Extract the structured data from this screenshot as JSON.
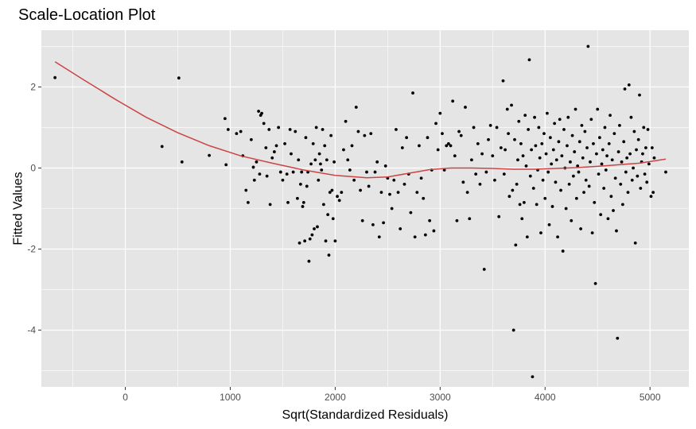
{
  "chart_data": {
    "type": "scatter",
    "title": "Scale-Location Plot",
    "xlabel": "Sqrt(Standardized Residuals)",
    "ylabel": "Fitted Values",
    "xlim": [
      -800,
      5370
    ],
    "ylim": [
      -5.4,
      3.4
    ],
    "x_ticks": [
      0,
      1000,
      2000,
      3000,
      4000,
      5000
    ],
    "x_tick_labels": [
      "0",
      "1000",
      "2000",
      "3000",
      "4000",
      "5000"
    ],
    "y_ticks": [
      -4,
      -2,
      0,
      2
    ],
    "y_tick_labels": [
      "-4",
      "-2",
      "0",
      "2"
    ],
    "grid": true,
    "background": "#e5e5e5",
    "grid_color": "#ffffff",
    "point_color": "#000000",
    "smooth_color": "#cc4444",
    "points": [
      [
        -670,
        2.23
      ],
      [
        350,
        0.53
      ],
      [
        510,
        2.22
      ],
      [
        540,
        0.15
      ],
      [
        800,
        0.31
      ],
      [
        950,
        1.22
      ],
      [
        960,
        0.08
      ],
      [
        980,
        0.95
      ],
      [
        1060,
        0.85
      ],
      [
        1100,
        0.9
      ],
      [
        1120,
        0.3
      ],
      [
        1150,
        -0.55
      ],
      [
        1170,
        -0.85
      ],
      [
        1200,
        0.7
      ],
      [
        1220,
        0.02
      ],
      [
        1230,
        -0.3
      ],
      [
        1250,
        0.15
      ],
      [
        1270,
        1.4
      ],
      [
        1280,
        -0.15
      ],
      [
        1290,
        1.3
      ],
      [
        1300,
        1.35
      ],
      [
        1320,
        1.1
      ],
      [
        1340,
        0.5
      ],
      [
        1350,
        -0.2
      ],
      [
        1370,
        0.95
      ],
      [
        1380,
        -0.9
      ],
      [
        1400,
        0.25
      ],
      [
        1420,
        0.4
      ],
      [
        1440,
        0.55
      ],
      [
        1460,
        1.0
      ],
      [
        1480,
        -0.1
      ],
      [
        1500,
        -0.3
      ],
      [
        1520,
        0.6
      ],
      [
        1540,
        -0.15
      ],
      [
        1550,
        -0.85
      ],
      [
        1570,
        0.95
      ],
      [
        1580,
        0.35
      ],
      [
        1600,
        -0.1
      ],
      [
        1620,
        0.9
      ],
      [
        1640,
        -0.75
      ],
      [
        1650,
        0.2
      ],
      [
        1660,
        -1.85
      ],
      [
        1670,
        -0.4
      ],
      [
        1680,
        -0.1
      ],
      [
        1690,
        -0.95
      ],
      [
        1700,
        -0.85
      ],
      [
        1710,
        -1.8
      ],
      [
        1720,
        0.75
      ],
      [
        1730,
        -0.45
      ],
      [
        1740,
        -0.1
      ],
      [
        1750,
        -2.3
      ],
      [
        1760,
        -1.75
      ],
      [
        1770,
        0.1
      ],
      [
        1780,
        -1.65
      ],
      [
        1790,
        0.6
      ],
      [
        1800,
        -1.5
      ],
      [
        1810,
        0.2
      ],
      [
        1820,
        1.0
      ],
      [
        1830,
        -1.45
      ],
      [
        1840,
        -0.3
      ],
      [
        1850,
        0.35
      ],
      [
        1860,
        0.1
      ],
      [
        1870,
        -0.05
      ],
      [
        1880,
        0.95
      ],
      [
        1890,
        -0.9
      ],
      [
        1900,
        0.55
      ],
      [
        1910,
        -1.8
      ],
      [
        1920,
        0.2
      ],
      [
        1930,
        -1.15
      ],
      [
        1940,
        -2.15
      ],
      [
        1950,
        -0.6
      ],
      [
        1960,
        0.8
      ],
      [
        1970,
        -0.55
      ],
      [
        1980,
        -1.25
      ],
      [
        1990,
        0.15
      ],
      [
        2000,
        -1.8
      ],
      [
        2020,
        -0.7
      ],
      [
        2040,
        -0.8
      ],
      [
        2060,
        -0.6
      ],
      [
        2080,
        0.45
      ],
      [
        2100,
        1.15
      ],
      [
        2120,
        0.2
      ],
      [
        2140,
        -0.05
      ],
      [
        2160,
        0.55
      ],
      [
        2180,
        -0.3
      ],
      [
        2200,
        1.5
      ],
      [
        2220,
        0.9
      ],
      [
        2240,
        -0.55
      ],
      [
        2260,
        -1.3
      ],
      [
        2280,
        0.8
      ],
      [
        2300,
        -0.1
      ],
      [
        2320,
        -0.45
      ],
      [
        2340,
        0.85
      ],
      [
        2360,
        -1.4
      ],
      [
        2380,
        -0.1
      ],
      [
        2400,
        0.15
      ],
      [
        2420,
        -1.7
      ],
      [
        2440,
        -0.6
      ],
      [
        2460,
        -1.35
      ],
      [
        2480,
        0.05
      ],
      [
        2500,
        -0.25
      ],
      [
        2520,
        -0.65
      ],
      [
        2540,
        -1.0
      ],
      [
        2560,
        -0.3
      ],
      [
        2580,
        0.95
      ],
      [
        2600,
        -0.6
      ],
      [
        2620,
        -1.5
      ],
      [
        2640,
        0.5
      ],
      [
        2660,
        -0.4
      ],
      [
        2680,
        0.75
      ],
      [
        2700,
        -0.15
      ],
      [
        2720,
        -1.1
      ],
      [
        2740,
        1.85
      ],
      [
        2760,
        -1.7
      ],
      [
        2780,
        -0.6
      ],
      [
        2800,
        0.55
      ],
      [
        2820,
        -0.25
      ],
      [
        2840,
        -0.75
      ],
      [
        2860,
        -1.65
      ],
      [
        2880,
        0.75
      ],
      [
        2900,
        -1.3
      ],
      [
        2920,
        -0.05
      ],
      [
        2940,
        -1.55
      ],
      [
        2960,
        1.1
      ],
      [
        2980,
        0.45
      ],
      [
        3000,
        1.35
      ],
      [
        3020,
        0.85
      ],
      [
        3040,
        -0.05
      ],
      [
        3060,
        0.55
      ],
      [
        3080,
        0.6
      ],
      [
        3100,
        0.55
      ],
      [
        3120,
        1.65
      ],
      [
        3140,
        0.3
      ],
      [
        3160,
        -1.3
      ],
      [
        3180,
        0.9
      ],
      [
        3200,
        0.8
      ],
      [
        3220,
        -0.35
      ],
      [
        3240,
        1.5
      ],
      [
        3260,
        -0.6
      ],
      [
        3280,
        -1.25
      ],
      [
        3300,
        0.2
      ],
      [
        3320,
        1.0
      ],
      [
        3340,
        -0.15
      ],
      [
        3360,
        0.6
      ],
      [
        3380,
        -0.4
      ],
      [
        3400,
        0.35
      ],
      [
        3420,
        -2.5
      ],
      [
        3440,
        -0.1
      ],
      [
        3460,
        0.7
      ],
      [
        3480,
        1.05
      ],
      [
        3500,
        0.3
      ],
      [
        3520,
        -0.3
      ],
      [
        3540,
        1.0
      ],
      [
        3560,
        -1.2
      ],
      [
        3580,
        0.5
      ],
      [
        3600,
        2.15
      ],
      [
        3610,
        -0.15
      ],
      [
        3620,
        0.45
      ],
      [
        3640,
        1.45
      ],
      [
        3650,
        0.85
      ],
      [
        3660,
        -0.7
      ],
      [
        3680,
        1.55
      ],
      [
        3690,
        -0.55
      ],
      [
        3700,
        -4.0
      ],
      [
        3710,
        0.7
      ],
      [
        3720,
        -1.9
      ],
      [
        3730,
        -0.4
      ],
      [
        3740,
        0.2
      ],
      [
        3750,
        1.15
      ],
      [
        3760,
        -0.9
      ],
      [
        3770,
        0.6
      ],
      [
        3780,
        -1.25
      ],
      [
        3790,
        0.3
      ],
      [
        3800,
        -0.85
      ],
      [
        3810,
        1.3
      ],
      [
        3820,
        0.05
      ],
      [
        3830,
        -1.7
      ],
      [
        3840,
        0.95
      ],
      [
        3850,
        2.67
      ],
      [
        3860,
        -0.2
      ],
      [
        3870,
        0.45
      ],
      [
        3880,
        -5.15
      ],
      [
        3890,
        -0.5
      ],
      [
        3900,
        1.25
      ],
      [
        3910,
        0.55
      ],
      [
        3920,
        -0.9
      ],
      [
        3930,
        -0.05
      ],
      [
        3940,
        1.0
      ],
      [
        3950,
        0.25
      ],
      [
        3960,
        -1.6
      ],
      [
        3970,
        0.6
      ],
      [
        3980,
        -0.3
      ],
      [
        3990,
        0.85
      ],
      [
        4000,
        -0.75
      ],
      [
        4010,
        0.35
      ],
      [
        4020,
        1.35
      ],
      [
        4030,
        -0.1
      ],
      [
        4040,
        -1.4
      ],
      [
        4050,
        0.75
      ],
      [
        4060,
        0.1
      ],
      [
        4070,
        -0.95
      ],
      [
        4080,
        0.45
      ],
      [
        4090,
        1.1
      ],
      [
        4100,
        -0.35
      ],
      [
        4110,
        0.2
      ],
      [
        4120,
        -1.7
      ],
      [
        4130,
        0.65
      ],
      [
        4140,
        1.2
      ],
      [
        4150,
        -0.55
      ],
      [
        4160,
        0.3
      ],
      [
        4170,
        -2.05
      ],
      [
        4180,
        0.95
      ],
      [
        4190,
        0.0
      ],
      [
        4200,
        -1.0
      ],
      [
        4210,
        0.55
      ],
      [
        4220,
        1.25
      ],
      [
        4230,
        -0.4
      ],
      [
        4240,
        0.15
      ],
      [
        4250,
        -1.3
      ],
      [
        4260,
        0.8
      ],
      [
        4270,
        -0.2
      ],
      [
        4280,
        0.4
      ],
      [
        4290,
        1.45
      ],
      [
        4300,
        -0.75
      ],
      [
        4310,
        0.05
      ],
      [
        4320,
        -0.1
      ],
      [
        4330,
        0.65
      ],
      [
        4340,
        -1.5
      ],
      [
        4350,
        1.05
      ],
      [
        4360,
        0.25
      ],
      [
        4370,
        -0.6
      ],
      [
        4380,
        0.9
      ],
      [
        4390,
        -0.3
      ],
      [
        4400,
        0.5
      ],
      [
        4410,
        3.0
      ],
      [
        4420,
        -0.45
      ],
      [
        4430,
        0.15
      ],
      [
        4440,
        1.2
      ],
      [
        4450,
        -1.6
      ],
      [
        4460,
        0.6
      ],
      [
        4470,
        -0.85
      ],
      [
        4480,
        -2.85
      ],
      [
        4490,
        0.35
      ],
      [
        4500,
        1.45
      ],
      [
        4510,
        -0.15
      ],
      [
        4520,
        0.75
      ],
      [
        4530,
        -1.15
      ],
      [
        4540,
        0.1
      ],
      [
        4550,
        0.45
      ],
      [
        4560,
        -0.5
      ],
      [
        4570,
        1.0
      ],
      [
        4580,
        -0.05
      ],
      [
        4590,
        0.3
      ],
      [
        4600,
        -1.25
      ],
      [
        4610,
        0.6
      ],
      [
        4620,
        1.3
      ],
      [
        4630,
        -0.7
      ],
      [
        4640,
        0.2
      ],
      [
        4650,
        -1.05
      ],
      [
        4660,
        0.85
      ],
      [
        4670,
        -0.25
      ],
      [
        4680,
        -1.55
      ],
      [
        4690,
        -4.2
      ],
      [
        4700,
        0.4
      ],
      [
        4710,
        1.05
      ],
      [
        4720,
        -0.4
      ],
      [
        4730,
        0.15
      ],
      [
        4740,
        -0.9
      ],
      [
        4750,
        0.65
      ],
      [
        4760,
        1.95
      ],
      [
        4770,
        -0.1
      ],
      [
        4780,
        0.25
      ],
      [
        4790,
        -0.6
      ],
      [
        4800,
        2.05
      ],
      [
        4810,
        0.35
      ],
      [
        4820,
        1.25
      ],
      [
        4830,
        -0.3
      ],
      [
        4840,
        0.0
      ],
      [
        4850,
        0.9
      ],
      [
        4860,
        -1.85
      ],
      [
        4870,
        0.45
      ],
      [
        4880,
        -0.2
      ],
      [
        4890,
        0.7
      ],
      [
        4900,
        1.8
      ],
      [
        4910,
        -0.5
      ],
      [
        4920,
        0.15
      ],
      [
        4930,
        0.35
      ],
      [
        4940,
        1.0
      ],
      [
        4950,
        -0.15
      ],
      [
        4960,
        0.5
      ],
      [
        4970,
        -0.35
      ],
      [
        4980,
        0.95
      ],
      [
        4990,
        0.1
      ],
      [
        5010,
        -0.7
      ],
      [
        5020,
        0.5
      ],
      [
        5030,
        -0.6
      ],
      [
        5040,
        0.25
      ],
      [
        5150,
        -0.1
      ]
    ],
    "smooth_line": [
      [
        -670,
        2.62
      ],
      [
        -400,
        2.18
      ],
      [
        -100,
        1.7
      ],
      [
        200,
        1.25
      ],
      [
        500,
        0.87
      ],
      [
        800,
        0.55
      ],
      [
        1100,
        0.3
      ],
      [
        1400,
        0.12
      ],
      [
        1700,
        -0.05
      ],
      [
        2000,
        -0.18
      ],
      [
        2300,
        -0.24
      ],
      [
        2500,
        -0.22
      ],
      [
        2700,
        -0.13
      ],
      [
        2900,
        -0.04
      ],
      [
        3100,
        0.0
      ],
      [
        3300,
        0.0
      ],
      [
        3500,
        -0.01
      ],
      [
        3700,
        -0.03
      ],
      [
        3900,
        -0.03
      ],
      [
        4100,
        -0.01
      ],
      [
        4300,
        0.01
      ],
      [
        4500,
        0.04
      ],
      [
        4700,
        0.08
      ],
      [
        4900,
        0.12
      ],
      [
        5150,
        0.22
      ]
    ]
  }
}
